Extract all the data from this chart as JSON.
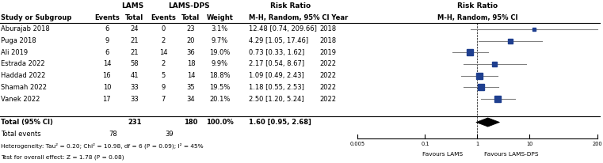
{
  "studies": [
    {
      "name": "Aburajab 2018",
      "lams_events": 6,
      "lams_total": 24,
      "dps_events": 0,
      "dps_total": 23,
      "weight": "3.1%",
      "rr": 12.48,
      "ci_low": 0.74,
      "ci_high": 209.66,
      "year": "2018"
    },
    {
      "name": "Puga 2018",
      "lams_events": 9,
      "lams_total": 21,
      "dps_events": 2,
      "dps_total": 20,
      "weight": "9.7%",
      "rr": 4.29,
      "ci_low": 1.05,
      "ci_high": 17.46,
      "year": "2018"
    },
    {
      "name": "Ali 2019",
      "lams_events": 6,
      "lams_total": 21,
      "dps_events": 14,
      "dps_total": 36,
      "weight": "19.0%",
      "rr": 0.73,
      "ci_low": 0.33,
      "ci_high": 1.62,
      "year": "2019"
    },
    {
      "name": "Estrada 2022",
      "lams_events": 14,
      "lams_total": 58,
      "dps_events": 2,
      "dps_total": 18,
      "weight": "9.9%",
      "rr": 2.17,
      "ci_low": 0.54,
      "ci_high": 8.67,
      "year": "2022"
    },
    {
      "name": "Haddad 2022",
      "lams_events": 16,
      "lams_total": 41,
      "dps_events": 5,
      "dps_total": 14,
      "weight": "18.8%",
      "rr": 1.09,
      "ci_low": 0.49,
      "ci_high": 2.43,
      "year": "2022"
    },
    {
      "name": "Shamah 2022",
      "lams_events": 10,
      "lams_total": 33,
      "dps_events": 9,
      "dps_total": 35,
      "weight": "19.5%",
      "rr": 1.18,
      "ci_low": 0.55,
      "ci_high": 2.53,
      "year": "2022"
    },
    {
      "name": "Vanek 2022",
      "lams_events": 17,
      "lams_total": 33,
      "dps_events": 7,
      "dps_total": 34,
      "weight": "20.1%",
      "rr": 2.5,
      "ci_low": 1.2,
      "ci_high": 5.24,
      "year": "2022"
    }
  ],
  "total": {
    "lams_total": 231,
    "dps_total": 180,
    "weight": "100.0%",
    "rr": 1.6,
    "ci_low": 0.95,
    "ci_high": 2.68,
    "lams_events": 78,
    "dps_events": 39
  },
  "heterogeneity": "Heterogeneity: Tau² = 0.20; Chi² = 10.98, df = 6 (P = 0.09); I² = 45%",
  "overall_effect": "Test for overall effect: Z = 1.78 (P = 0.08)",
  "axis_ticks": [
    0.005,
    0.1,
    1,
    10,
    200
  ],
  "axis_labels": [
    "0.005",
    "0.1",
    "1",
    "10",
    "200"
  ],
  "favours_left": "Favours LAMS",
  "favours_right": "Favours LAMS-DPS",
  "col_header_lams": "LAMS",
  "col_header_dps": "LAMS-DPS",
  "col_header_rr": "Risk Ratio",
  "col_header_rr2": "Risk Ratio",
  "col_subheader_left": "M-H, Random, 95% CI Year",
  "col_subheader_right": "M-H, Random, 95% CI",
  "study_col_label": "Study or Subgroup",
  "dot_color": "#1f3f8f",
  "line_color": "#808080",
  "bg_color": "#ffffff"
}
